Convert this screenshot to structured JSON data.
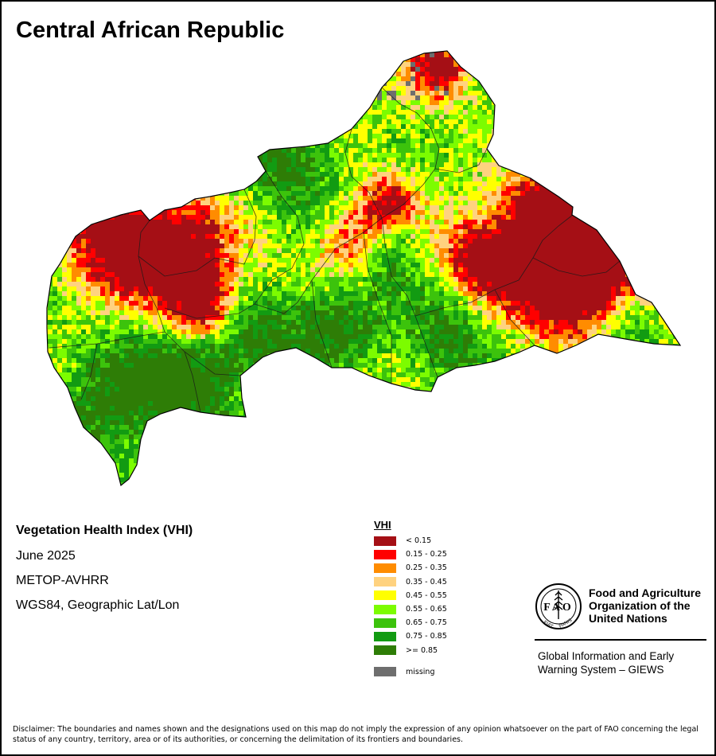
{
  "title": "Central African Republic",
  "info": {
    "index_title": "Vegetation Health Index (VHI)",
    "period": "June 2025",
    "sensor": "METOP-AVHRR",
    "projection": "WGS84, Geographic Lat/Lon"
  },
  "legend": {
    "title": "VHI",
    "items": [
      {
        "label": "< 0.15",
        "color": "#a50f15"
      },
      {
        "label": "0.15 - 0.25",
        "color": "#ff0000"
      },
      {
        "label": "0.25 - 0.35",
        "color": "#ff8c00"
      },
      {
        "label": "0.35 - 0.45",
        "color": "#ffd27f"
      },
      {
        "label": "0.45 - 0.55",
        "color": "#ffff00"
      },
      {
        "label": "0.55 - 0.65",
        "color": "#7cfc00"
      },
      {
        "label": "0.65 - 0.75",
        "color": "#3cc30c"
      },
      {
        "label": "0.75 - 0.85",
        "color": "#129b12"
      },
      {
        "label": ">= 0.85",
        "color": "#2e7d06"
      }
    ],
    "missing": {
      "label": "missing",
      "color": "#6e6e6e"
    }
  },
  "organization": {
    "name_line1": "Food and Agriculture",
    "name_line2": "Organization of the",
    "name_line3": "United Nations",
    "logo_text": "FAO",
    "logo_motto_left": "FIAT",
    "logo_motto_right": "PANIS",
    "system_line1": "Global Information and Early",
    "system_line2": "Warning System – GIEWS"
  },
  "disclaimer": "Disclaimer: The boundaries and names shown and the designations used on this map do not imply the expression of any opinion whatsoever on the part of FAO concerning the legal status of any country, territory, area or of its authorities, or concerning the delimitation of its frontiers and boundaries."
}
